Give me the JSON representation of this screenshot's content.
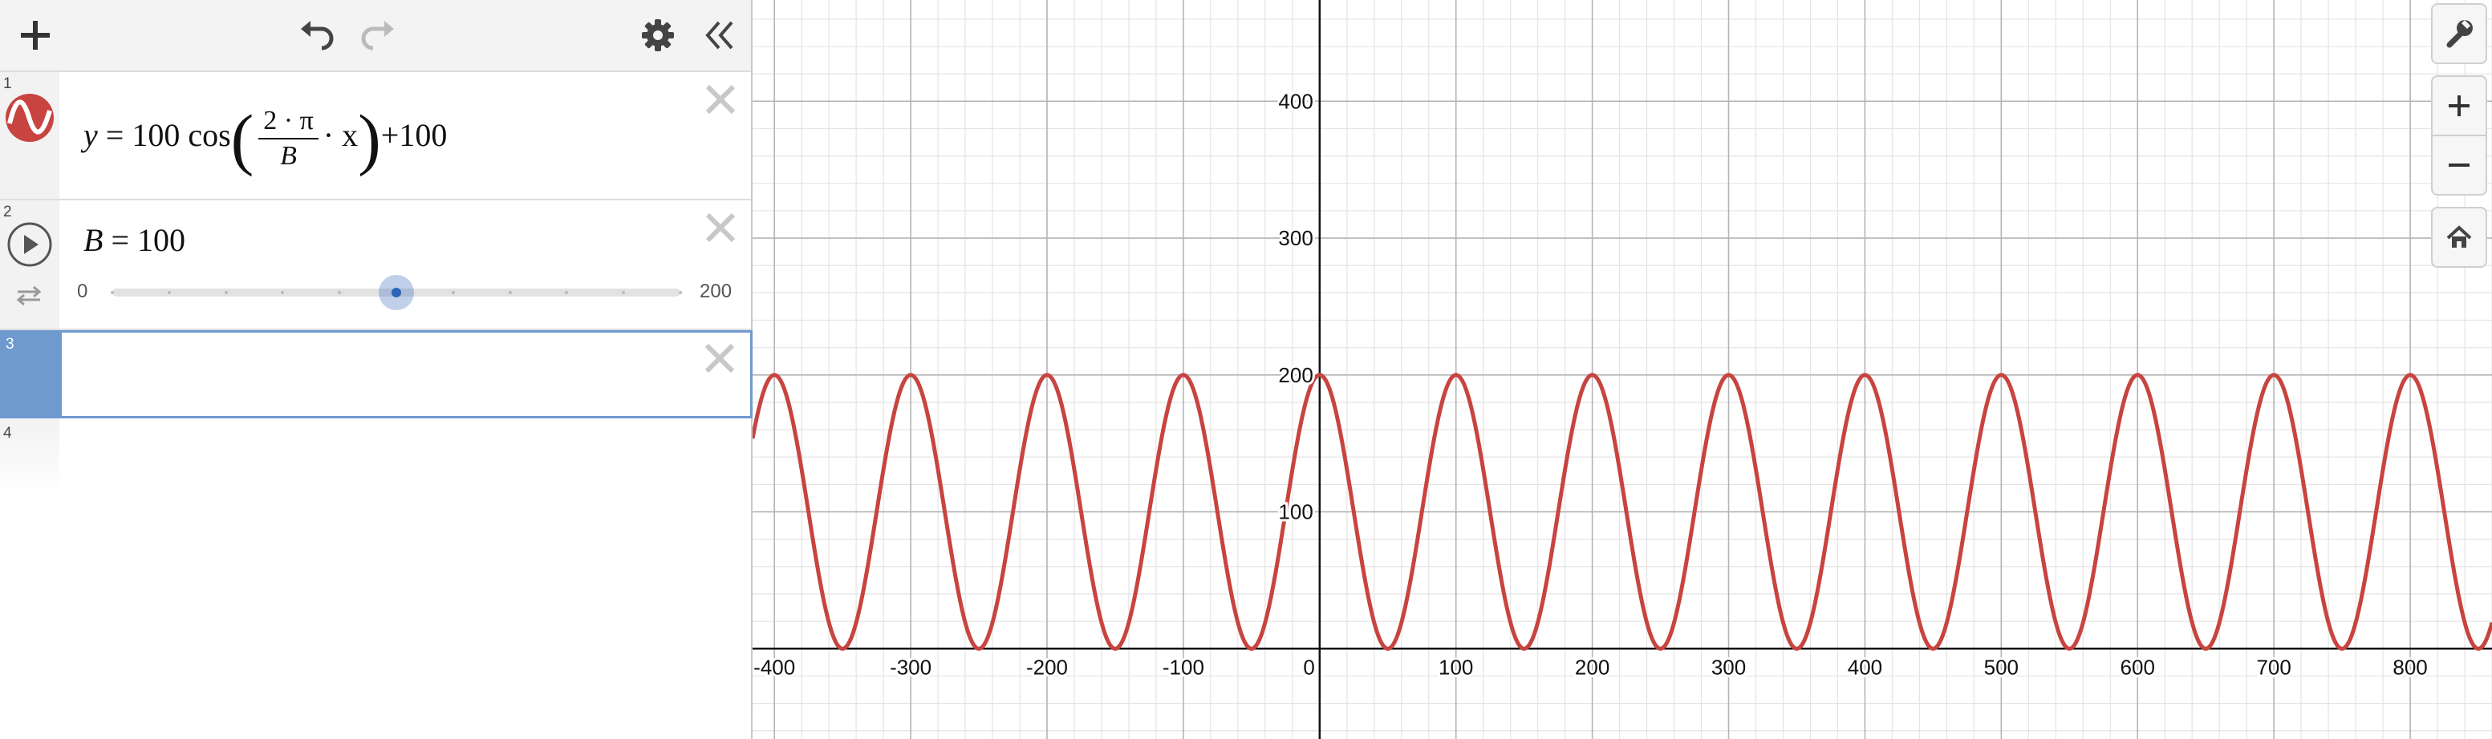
{
  "expressions": [
    {
      "number": "1",
      "latex": "y=100\\cos\\left(\\frac{2\\cdot\\pi}{B}\\cdot x\\right)+100",
      "lhs": "y",
      "equals": "=",
      "coef": "100",
      "func": "cos",
      "frac_num": "2 · π",
      "frac_den": "B",
      "dot_x": "· x",
      "tail": "+100",
      "color": "#c74440"
    },
    {
      "number": "2",
      "var": "B",
      "equals": "=",
      "value": "100",
      "slider": {
        "min": "0",
        "max": "200",
        "current": 100
      }
    },
    {
      "number": "3",
      "content": ""
    },
    {
      "number": "4"
    }
  ],
  "graph": {
    "curve_color": "#c74440",
    "x_ticks": [
      "-400",
      "-300",
      "-200",
      "-100",
      "0",
      "100",
      "200",
      "300",
      "400",
      "500",
      "600",
      "700",
      "800"
    ],
    "y_ticks": [
      "100",
      "200",
      "300",
      "400"
    ],
    "x_range": [
      -416,
      860
    ],
    "y_range": [
      -66,
      474
    ]
  },
  "icons": {
    "add": "plus-icon",
    "undo": "undo-icon",
    "redo": "redo-icon",
    "settings": "gear-icon",
    "collapse": "double-chevron-left-icon",
    "wrench": "wrench-icon",
    "zoom_in": "plus-icon",
    "zoom_out": "minus-icon",
    "home": "home-icon"
  }
}
